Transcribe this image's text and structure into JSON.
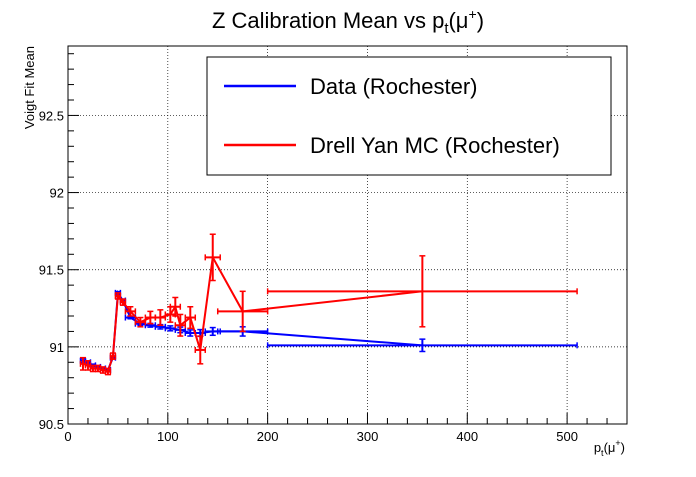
{
  "chart_data": {
    "type": "line",
    "title": "Z Calibration Mean vs p_t(μ+)",
    "title_parts": {
      "main": "Z Calibration Mean vs p",
      "sub": "t",
      "rest": "(μ",
      "sup": "+",
      "end": ")"
    },
    "xlabel_parts": {
      "main": "p",
      "sub": "t",
      "rest": "(μ",
      "sup": "+",
      "end": ")"
    },
    "ylabel": "Voigt Fit Mean",
    "xlim": [
      0,
      560
    ],
    "ylim": [
      90.5,
      92.95
    ],
    "x_ticks": [
      0,
      100,
      200,
      300,
      400,
      500
    ],
    "y_ticks": [
      90.5,
      91,
      91.5,
      92,
      92.5
    ],
    "x_tick_labels": [
      "0",
      "100",
      "200",
      "300",
      "400",
      "500"
    ],
    "y_tick_labels": [
      "90.5",
      "91",
      "91.5",
      "92",
      "92.5"
    ],
    "grid": true,
    "legend_position": "top-right",
    "series": [
      {
        "name": "Data (Rochester)",
        "color": "#0000ff",
        "points": [
          {
            "x": 15,
            "xlo": 12.5,
            "xhi": 17.5,
            "y": 90.91,
            "ey": 0.012
          },
          {
            "x": 20,
            "xlo": 17.5,
            "xhi": 22.5,
            "y": 90.9,
            "ey": 0.01
          },
          {
            "x": 25,
            "xlo": 22.5,
            "xhi": 27.5,
            "y": 90.88,
            "ey": 0.008
          },
          {
            "x": 30,
            "xlo": 27.5,
            "xhi": 32.5,
            "y": 90.87,
            "ey": 0.007
          },
          {
            "x": 35,
            "xlo": 32.5,
            "xhi": 37.5,
            "y": 90.86,
            "ey": 0.006
          },
          {
            "x": 40,
            "xlo": 37.5,
            "xhi": 42.5,
            "y": 90.85,
            "ey": 0.006
          },
          {
            "x": 45,
            "xlo": 42.5,
            "xhi": 47.5,
            "y": 90.93,
            "ey": 0.006
          },
          {
            "x": 50,
            "xlo": 47.5,
            "xhi": 52.5,
            "y": 91.35,
            "ey": 0.008
          },
          {
            "x": 55,
            "xlo": 52.5,
            "xhi": 57.5,
            "y": 91.3,
            "ey": 0.009
          },
          {
            "x": 62.5,
            "xlo": 57.5,
            "xhi": 67.5,
            "y": 91.19,
            "ey": 0.008
          },
          {
            "x": 72.5,
            "xlo": 67.5,
            "xhi": 77.5,
            "y": 91.15,
            "ey": 0.01
          },
          {
            "x": 82.5,
            "xlo": 77.5,
            "xhi": 87.5,
            "y": 91.14,
            "ey": 0.012
          },
          {
            "x": 92.5,
            "xlo": 87.5,
            "xhi": 97.5,
            "y": 91.13,
            "ey": 0.014
          },
          {
            "x": 102.5,
            "xlo": 97.5,
            "xhi": 107.5,
            "y": 91.12,
            "ey": 0.016
          },
          {
            "x": 112.5,
            "xlo": 107.5,
            "xhi": 117.5,
            "y": 91.11,
            "ey": 0.018
          },
          {
            "x": 122.5,
            "xlo": 117.5,
            "xhi": 127.5,
            "y": 91.09,
            "ey": 0.02
          },
          {
            "x": 132.5,
            "xlo": 127.5,
            "xhi": 137.5,
            "y": 91.09,
            "ey": 0.022
          },
          {
            "x": 145,
            "xlo": 137.5,
            "xhi": 152.5,
            "y": 91.1,
            "ey": 0.025
          },
          {
            "x": 175,
            "xlo": 150,
            "xhi": 200,
            "y": 91.1,
            "ey": 0.03
          },
          {
            "x": 355,
            "xlo": 200,
            "xhi": 510,
            "y": 91.01,
            "ey": 0.04
          }
        ]
      },
      {
        "name": "Drell Yan MC (Rochester)",
        "color": "#ff0000",
        "points": [
          {
            "x": 15,
            "xlo": 12.5,
            "xhi": 17.5,
            "y": 90.89,
            "ey": 0.04
          },
          {
            "x": 20,
            "xlo": 17.5,
            "xhi": 22.5,
            "y": 90.88,
            "ey": 0.03
          },
          {
            "x": 25,
            "xlo": 22.5,
            "xhi": 27.5,
            "y": 90.86,
            "ey": 0.02
          },
          {
            "x": 30,
            "xlo": 27.5,
            "xhi": 32.5,
            "y": 90.86,
            "ey": 0.02
          },
          {
            "x": 35,
            "xlo": 32.5,
            "xhi": 37.5,
            "y": 90.85,
            "ey": 0.02
          },
          {
            "x": 40,
            "xlo": 37.5,
            "xhi": 42.5,
            "y": 90.84,
            "ey": 0.02
          },
          {
            "x": 45,
            "xlo": 42.5,
            "xhi": 47.5,
            "y": 90.94,
            "ey": 0.02
          },
          {
            "x": 50,
            "xlo": 47.5,
            "xhi": 52.5,
            "y": 91.33,
            "ey": 0.02
          },
          {
            "x": 55,
            "xlo": 52.5,
            "xhi": 57.5,
            "y": 91.29,
            "ey": 0.02
          },
          {
            "x": 62.5,
            "xlo": 57.5,
            "xhi": 67.5,
            "y": 91.23,
            "ey": 0.03
          },
          {
            "x": 72.5,
            "xlo": 67.5,
            "xhi": 77.5,
            "y": 91.16,
            "ey": 0.03
          },
          {
            "x": 82.5,
            "xlo": 77.5,
            "xhi": 87.5,
            "y": 91.19,
            "ey": 0.04
          },
          {
            "x": 92.5,
            "xlo": 87.5,
            "xhi": 97.5,
            "y": 91.19,
            "ey": 0.05
          },
          {
            "x": 102.5,
            "xlo": 97.5,
            "xhi": 107.5,
            "y": 91.21,
            "ey": 0.05
          },
          {
            "x": 107.5,
            "xlo": 102.5,
            "xhi": 112.5,
            "y": 91.26,
            "ey": 0.06
          },
          {
            "x": 112.5,
            "xlo": 107.5,
            "xhi": 117.5,
            "y": 91.14,
            "ey": 0.07
          },
          {
            "x": 122.5,
            "xlo": 117.5,
            "xhi": 127.5,
            "y": 91.19,
            "ey": 0.07
          },
          {
            "x": 132.5,
            "xlo": 127.5,
            "xhi": 137.5,
            "y": 90.98,
            "ey": 0.09
          },
          {
            "x": 145,
            "xlo": 137.5,
            "xhi": 152.5,
            "y": 91.58,
            "ey": 0.15
          },
          {
            "x": 175,
            "xlo": 150,
            "xhi": 200,
            "y": 91.23,
            "ey": 0.13
          },
          {
            "x": 355,
            "xlo": 200,
            "xhi": 510,
            "y": 91.36,
            "ey": 0.23
          }
        ]
      }
    ]
  }
}
